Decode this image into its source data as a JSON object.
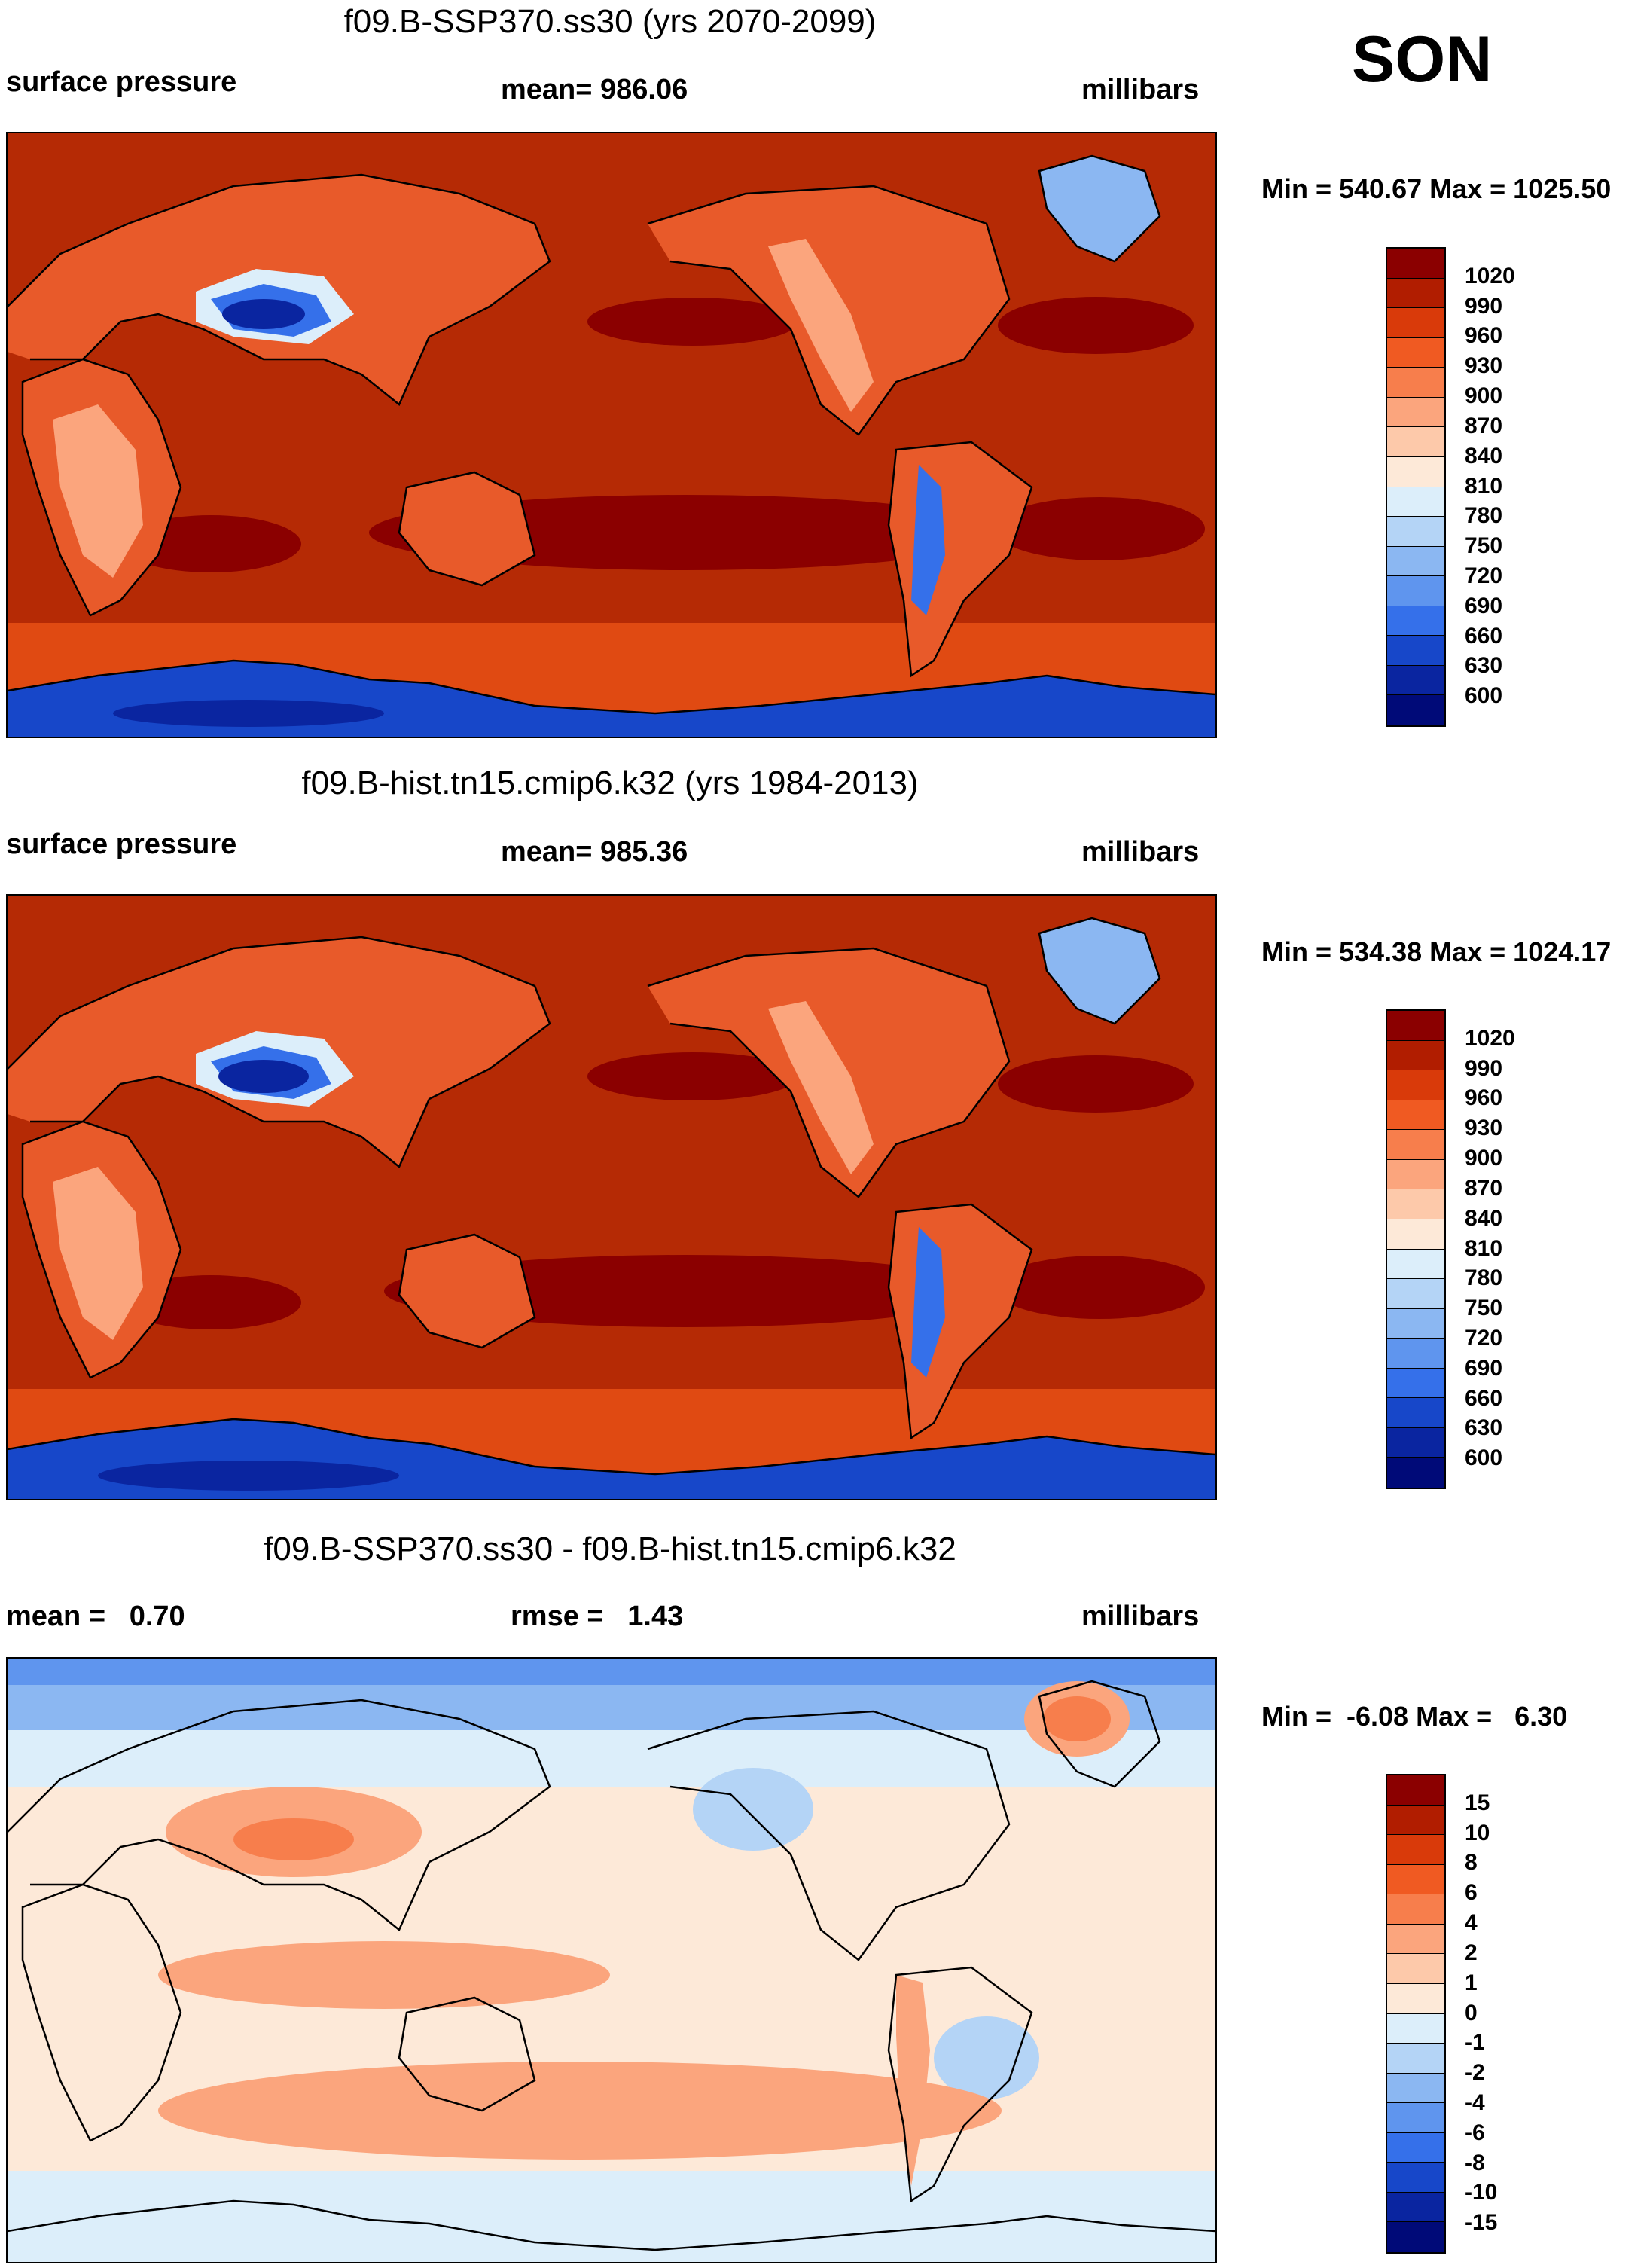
{
  "season": "SON",
  "panels": [
    {
      "title": "f09.B-SSP370.ss30 (yrs 2070-2099)",
      "left_label": "surface pressure",
      "center_label": "mean= 986.06",
      "right_label": "millibars",
      "minmax": "Min = 540.67 Max = 1025.50",
      "colorbar": {
        "labels": [
          "1020",
          "990",
          "960",
          "930",
          "900",
          "870",
          "840",
          "810",
          "780",
          "750",
          "720",
          "690",
          "660",
          "630",
          "600"
        ],
        "colors": [
          "#8b0000",
          "#b11d00",
          "#d93a0a",
          "#f05a22",
          "#f77e4c",
          "#fba57d",
          "#fdc9aa",
          "#fde9d8",
          "#dceefa",
          "#b4d4f6",
          "#8bb7f2",
          "#5f95ee",
          "#3570ea",
          "#1747c9",
          "#0a25a0",
          "#000a78"
        ]
      },
      "field": {
        "ocean": "#b52a05",
        "highs": "#8b0000",
        "low_land": "#e85a2a",
        "mid_land": "#fba57d",
        "high_land": "#dceefa",
        "plateau": "#3570ea",
        "plateau_core": "#0a25a0",
        "antarctic": "#1747c9",
        "southern_band": "#e04a12",
        "greenland": "#8bb7f2"
      }
    },
    {
      "title": "f09.B-hist.tn15.cmip6.k32 (yrs 1984-2013)",
      "left_label": "surface pressure",
      "center_label": "mean= 985.36",
      "right_label": "millibars",
      "minmax": "Min = 534.38 Max = 1024.17",
      "colorbar": {
        "labels": [
          "1020",
          "990",
          "960",
          "930",
          "900",
          "870",
          "840",
          "810",
          "780",
          "750",
          "720",
          "690",
          "660",
          "630",
          "600"
        ],
        "colors": [
          "#8b0000",
          "#b11d00",
          "#d93a0a",
          "#f05a22",
          "#f77e4c",
          "#fba57d",
          "#fdc9aa",
          "#fde9d8",
          "#dceefa",
          "#b4d4f6",
          "#8bb7f2",
          "#5f95ee",
          "#3570ea",
          "#1747c9",
          "#0a25a0",
          "#000a78"
        ]
      },
      "field": {
        "ocean": "#b52a05",
        "highs": "#8b0000",
        "low_land": "#e85a2a",
        "mid_land": "#fba57d",
        "high_land": "#dceefa",
        "plateau": "#3570ea",
        "plateau_core": "#0a25a0",
        "antarctic": "#1747c9",
        "southern_band": "#e04a12",
        "greenland": "#8bb7f2"
      }
    },
    {
      "title": "f09.B-SSP370.ss30 - f09.B-hist.tn15.cmip6.k32",
      "left_label": "mean =   0.70",
      "center_label": "rmse =   1.43",
      "right_label": "millibars",
      "minmax": "Min =  -6.08 Max =   6.30",
      "colorbar": {
        "labels": [
          "15",
          "10",
          "8",
          "6",
          "4",
          "2",
          "1",
          "0",
          "-1",
          "-2",
          "-4",
          "-6",
          "-8",
          "-10",
          "-15"
        ],
        "colors": [
          "#8b0000",
          "#b11d00",
          "#d93a0a",
          "#f05a22",
          "#f77e4c",
          "#fba57d",
          "#fdc9aa",
          "#fde9d8",
          "#dceefa",
          "#b4d4f6",
          "#8bb7f2",
          "#5f95ee",
          "#3570ea",
          "#1747c9",
          "#0a25a0",
          "#000a78"
        ]
      },
      "field": {
        "ocean": "#fde9d8",
        "pos_band": "#fba57d",
        "pos_core": "#f77e4c",
        "neg_polar": "#8bb7f2",
        "neg_polar_core": "#5f95ee",
        "neg_light": "#dceefa",
        "neg_mid": "#b4d4f6"
      }
    }
  ]
}
